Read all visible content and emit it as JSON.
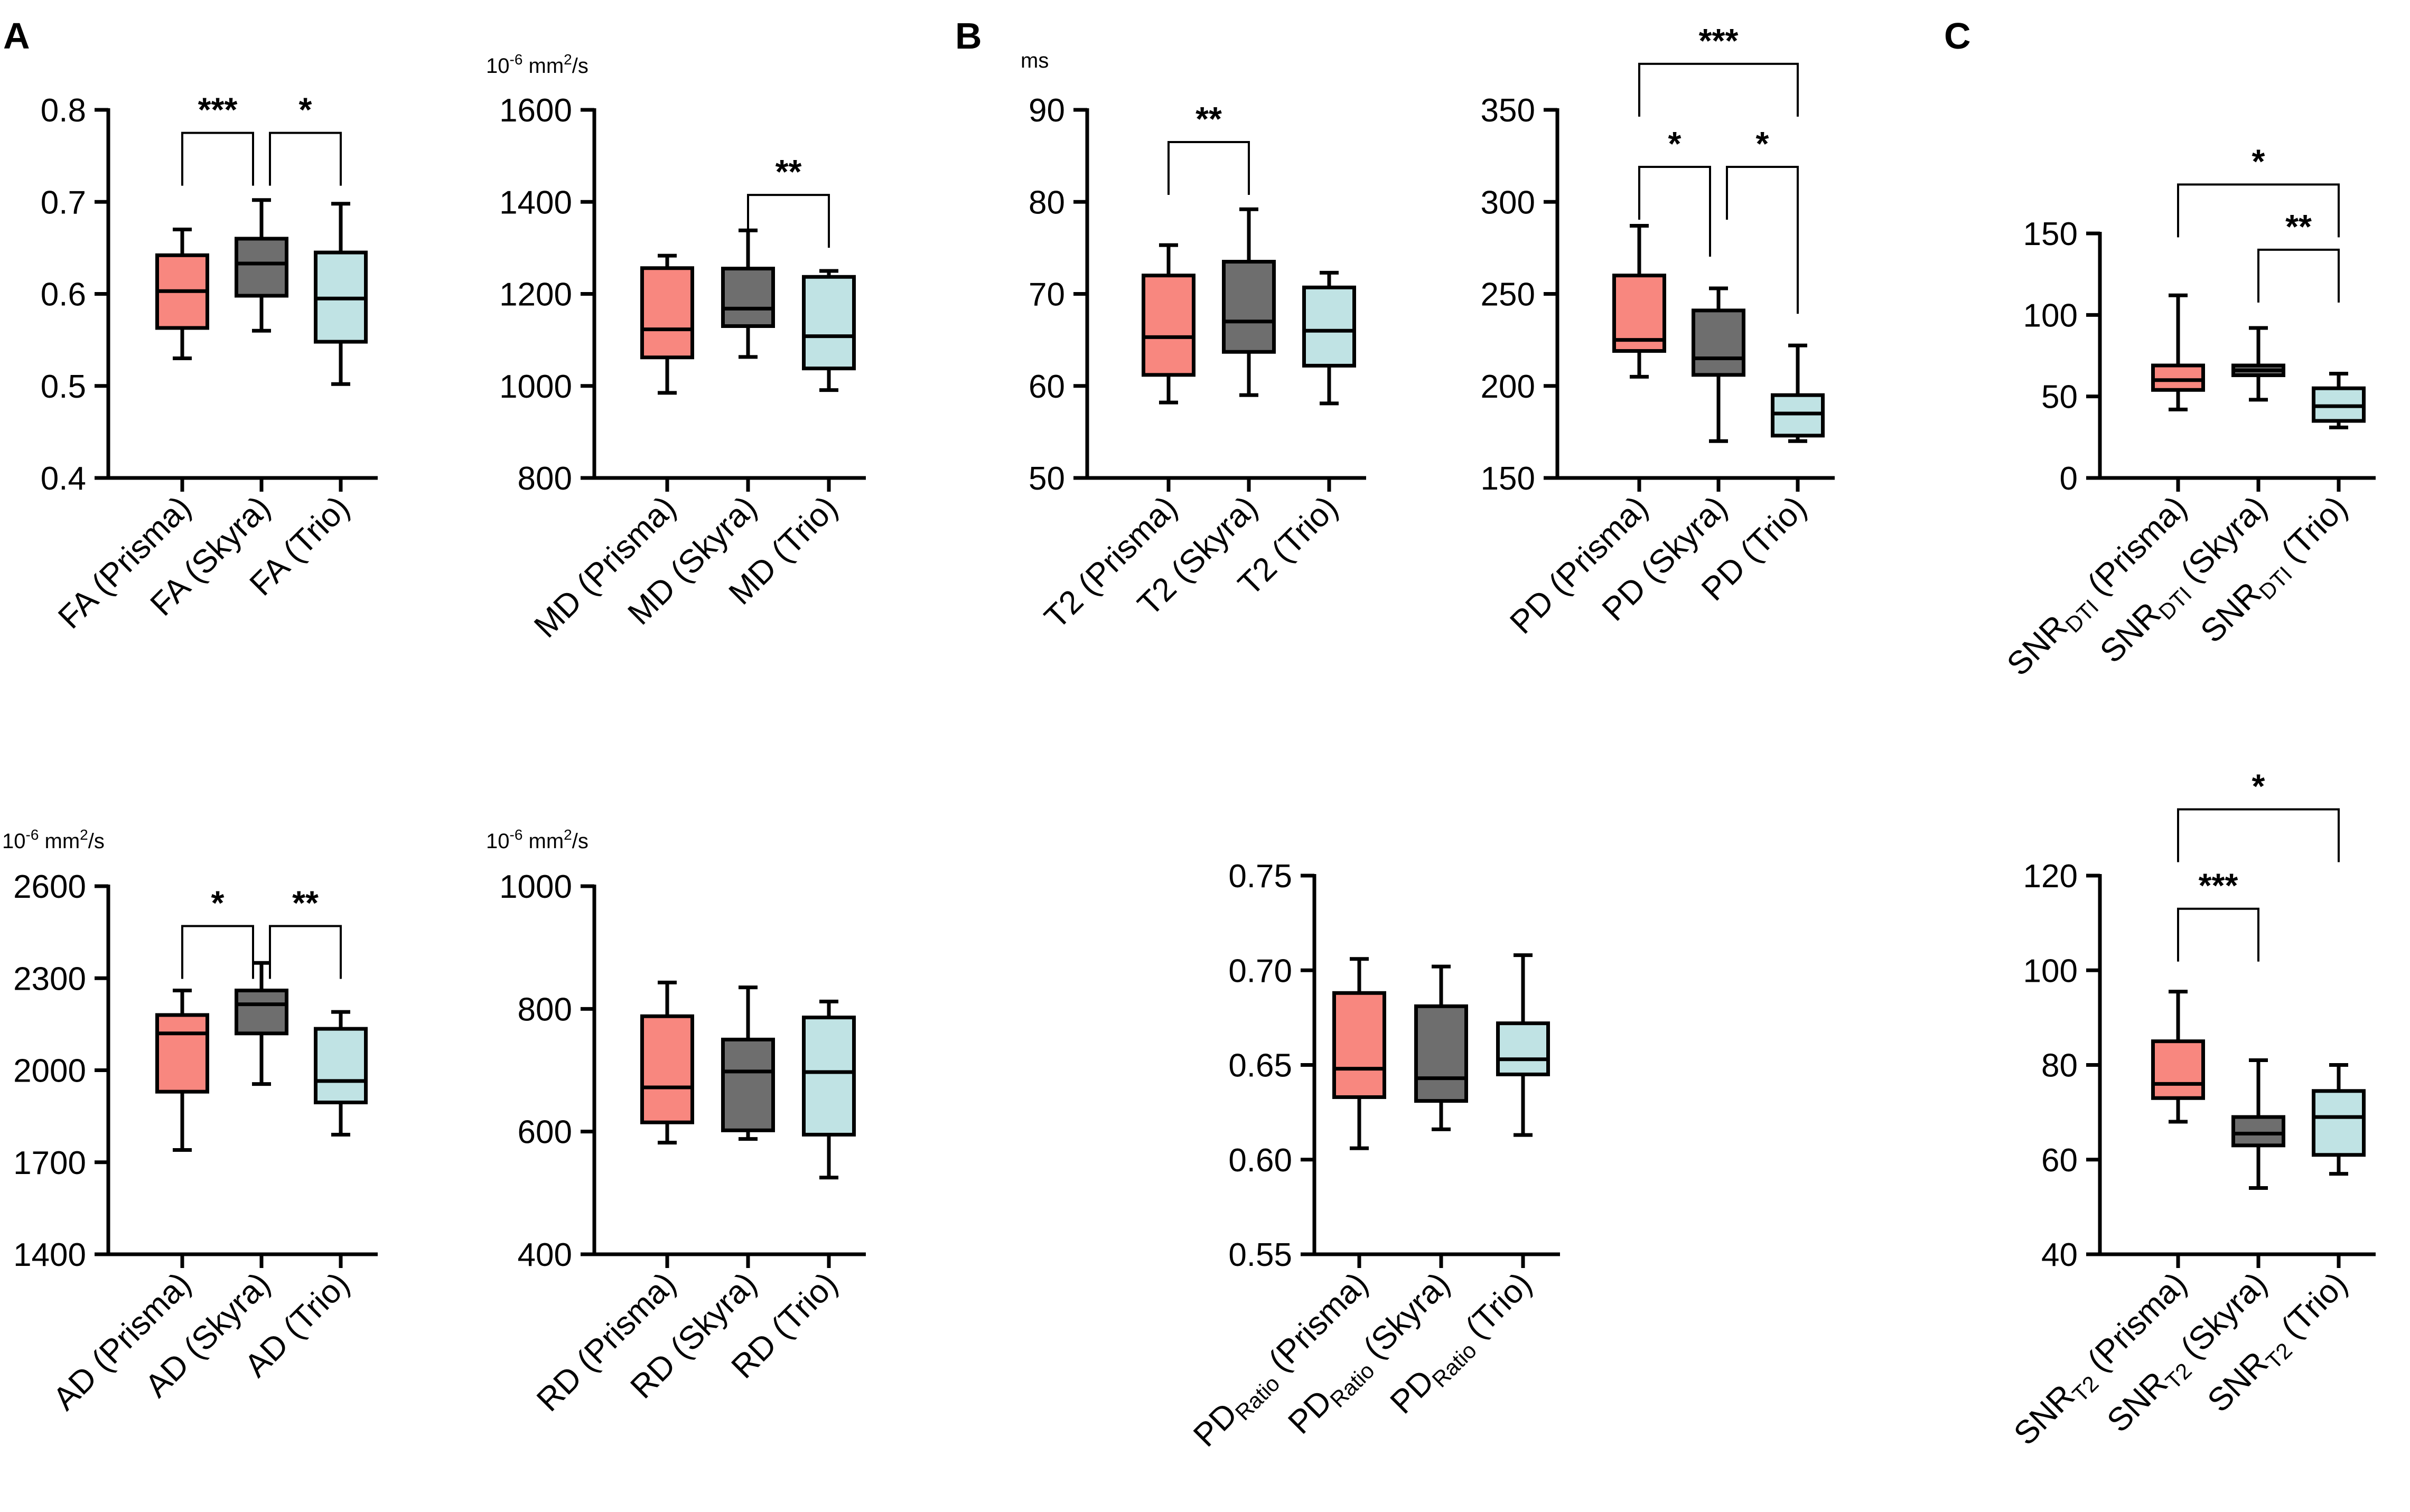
{
  "panel_labels": [
    "A",
    "B",
    "C"
  ],
  "colors": {
    "prisma": "#F8877F",
    "skyra": "#6E6E6E",
    "trio": "#C0E3E4",
    "stroke": "#000000"
  },
  "chart_data": [
    {
      "id": "fa",
      "type": "box",
      "panel": "A",
      "unit": "",
      "ylim": [
        0.4,
        0.8
      ],
      "yticks": [
        0.4,
        0.5,
        0.6,
        0.7,
        0.8
      ],
      "ytick_labels": [
        "0.4",
        "0.5",
        "0.6",
        "0.7",
        "0.8"
      ],
      "categories": [
        {
          "base": "FA",
          "sub": "",
          "suffix": " (Prisma)"
        },
        {
          "base": "FA",
          "sub": "",
          "suffix": " (Skyra)"
        },
        {
          "base": "FA",
          "sub": "",
          "suffix": " (Trio)"
        }
      ],
      "boxes": [
        {
          "min": 0.53,
          "q1": 0.563,
          "median": 0.603,
          "q3": 0.642,
          "max": 0.67
        },
        {
          "min": 0.56,
          "q1": 0.598,
          "median": 0.633,
          "q3": 0.66,
          "max": 0.702
        },
        {
          "min": 0.502,
          "q1": 0.548,
          "median": 0.595,
          "q3": 0.645,
          "max": 0.698
        }
      ],
      "significance": [
        {
          "from": 0,
          "to": 1,
          "label": "***",
          "bar_y": 0.775
        },
        {
          "from": 1,
          "to": 2,
          "label": "*",
          "bar_y": 0.775
        }
      ]
    },
    {
      "id": "md",
      "type": "box",
      "panel": "A",
      "unit": "10-6 mm2/s",
      "ylim": [
        800,
        1600
      ],
      "yticks": [
        800,
        1000,
        1200,
        1400,
        1600
      ],
      "ytick_labels": [
        "800",
        "1000",
        "1200",
        "1400",
        "1600"
      ],
      "categories": [
        {
          "base": "MD",
          "sub": "",
          "suffix": " (Prisma)"
        },
        {
          "base": "MD",
          "sub": "",
          "suffix": " (Skyra)"
        },
        {
          "base": "MD",
          "sub": "",
          "suffix": " (Trio)"
        }
      ],
      "boxes": [
        {
          "min": 985,
          "q1": 1062,
          "median": 1123,
          "q3": 1256,
          "max": 1283
        },
        {
          "min": 1063,
          "q1": 1130,
          "median": 1168,
          "q3": 1255,
          "max": 1338
        },
        {
          "min": 991,
          "q1": 1038,
          "median": 1108,
          "q3": 1237,
          "max": 1250
        }
      ],
      "significance": [
        {
          "from": 1,
          "to": 2,
          "label": "**",
          "bar_y": 1415
        }
      ]
    },
    {
      "id": "t2",
      "type": "box",
      "panel": "B",
      "unit": "ms",
      "ylim": [
        50,
        90
      ],
      "yticks": [
        50,
        60,
        70,
        80,
        90
      ],
      "ytick_labels": [
        "50",
        "60",
        "70",
        "80",
        "90"
      ],
      "categories": [
        {
          "base": "T2",
          "sub": "",
          "suffix": " (Prisma)"
        },
        {
          "base": "T2",
          "sub": "",
          "suffix": " (Skyra)"
        },
        {
          "base": "T2",
          "sub": "",
          "suffix": " (Trio)"
        }
      ],
      "boxes": [
        {
          "min": 58.2,
          "q1": 61.2,
          "median": 65.3,
          "q3": 72.0,
          "max": 75.3
        },
        {
          "min": 59.0,
          "q1": 63.7,
          "median": 67.0,
          "q3": 73.5,
          "max": 79.2
        },
        {
          "min": 58.1,
          "q1": 62.2,
          "median": 66.0,
          "q3": 70.7,
          "max": 72.3
        }
      ],
      "significance": [
        {
          "from": 0,
          "to": 1,
          "label": "**",
          "bar_y": 86.5
        }
      ]
    },
    {
      "id": "pd",
      "type": "box",
      "panel": "B",
      "unit": "",
      "ylim": [
        150,
        350
      ],
      "yticks": [
        150,
        200,
        250,
        300,
        350
      ],
      "ytick_labels": [
        "150",
        "200",
        "250",
        "300",
        "350"
      ],
      "categories": [
        {
          "base": "PD",
          "sub": "",
          "suffix": " (Prisma)"
        },
        {
          "base": "PD",
          "sub": "",
          "suffix": " (Skyra)"
        },
        {
          "base": "PD",
          "sub": "",
          "suffix": " (Trio)"
        }
      ],
      "boxes": [
        {
          "min": 205,
          "q1": 219,
          "median": 225,
          "q3": 260,
          "max": 287
        },
        {
          "min": 170,
          "q1": 206,
          "median": 215,
          "q3": 241,
          "max": 253
        },
        {
          "min": 170,
          "q1": 173,
          "median": 185,
          "q3": 195,
          "max": 222
        }
      ],
      "significance": [
        {
          "from": 0,
          "to": 1,
          "label": "*",
          "bar_y": 319,
          "drop_to": 0
        },
        {
          "from": 1,
          "to": 2,
          "label": "*",
          "bar_y": 319,
          "drop_to": 0
        },
        {
          "from": 0,
          "to": 2,
          "label": "***",
          "bar_y": 375
        }
      ]
    },
    {
      "id": "snr_dti",
      "type": "box",
      "panel": "C",
      "unit": "",
      "ylim": [
        0,
        150
      ],
      "yticks": [
        0,
        50,
        100,
        150
      ],
      "ytick_labels": [
        "0",
        "50",
        "100",
        "150"
      ],
      "categories": [
        {
          "base": "SNR",
          "sub": "DTI",
          "suffix": " (Prisma)"
        },
        {
          "base": "SNR",
          "sub": "DTI",
          "suffix": " (Skyra)"
        },
        {
          "base": "SNR",
          "sub": "DTI",
          "suffix": " (Trio)"
        }
      ],
      "boxes": [
        {
          "min": 42,
          "q1": 54,
          "median": 60,
          "q3": 69,
          "max": 112
        },
        {
          "min": 48,
          "q1": 63,
          "median": 66,
          "q3": 69,
          "max": 92
        },
        {
          "min": 31,
          "q1": 35,
          "median": 44,
          "q3": 55,
          "max": 64
        }
      ],
      "significance": [
        {
          "from": 1,
          "to": 2,
          "label": "**",
          "bar_y": 140
        },
        {
          "from": 0,
          "to": 2,
          "label": "*",
          "bar_y": 180
        }
      ]
    },
    {
      "id": "ad",
      "type": "box",
      "panel": "A",
      "unit": "10-6 mm2/s",
      "ylim": [
        1400,
        2600
      ],
      "yticks": [
        1400,
        1700,
        2000,
        2300,
        2600
      ],
      "ytick_labels": [
        "1400",
        "1700",
        "2000",
        "2300",
        "2600"
      ],
      "categories": [
        {
          "base": "AD",
          "sub": "",
          "suffix": " (Prisma)"
        },
        {
          "base": "AD",
          "sub": "",
          "suffix": " (Skyra)"
        },
        {
          "base": "AD",
          "sub": "",
          "suffix": " (Trio)"
        }
      ],
      "boxes": [
        {
          "min": 1740,
          "q1": 1930,
          "median": 2120,
          "q3": 2180,
          "max": 2260
        },
        {
          "min": 1955,
          "q1": 2120,
          "median": 2215,
          "q3": 2260,
          "max": 2350
        },
        {
          "min": 1790,
          "q1": 1895,
          "median": 1965,
          "q3": 2135,
          "max": 2190
        }
      ],
      "significance": [
        {
          "from": 0,
          "to": 1,
          "label": "*",
          "bar_y": 2470
        },
        {
          "from": 1,
          "to": 2,
          "label": "**",
          "bar_y": 2470
        }
      ]
    },
    {
      "id": "rd",
      "type": "box",
      "panel": "A",
      "unit": "10-6 mm2/s",
      "ylim": [
        400,
        1000
      ],
      "yticks": [
        400,
        600,
        800,
        1000
      ],
      "ytick_labels": [
        "400",
        "600",
        "800",
        "1000"
      ],
      "categories": [
        {
          "base": "RD",
          "sub": "",
          "suffix": " (Prisma)"
        },
        {
          "base": "RD",
          "sub": "",
          "suffix": " (Skyra)"
        },
        {
          "base": "RD",
          "sub": "",
          "suffix": " (Trio)"
        }
      ],
      "boxes": [
        {
          "min": 582,
          "q1": 615,
          "median": 672,
          "q3": 788,
          "max": 843
        },
        {
          "min": 588,
          "q1": 602,
          "median": 698,
          "q3": 750,
          "max": 835
        },
        {
          "min": 525,
          "q1": 595,
          "median": 697,
          "q3": 786,
          "max": 812
        }
      ],
      "significance": []
    },
    {
      "id": "pd_ratio",
      "type": "box",
      "panel": "B",
      "unit": "",
      "ylim": [
        0.55,
        0.75
      ],
      "yticks": [
        0.55,
        0.6,
        0.65,
        0.7,
        0.75
      ],
      "ytick_labels": [
        "0.55",
        "0.60",
        "0.65",
        "0.70",
        "0.75"
      ],
      "categories": [
        {
          "base": "PD",
          "sub": "Ratio",
          "suffix": " (Prisma)"
        },
        {
          "base": "PD",
          "sub": "Ratio",
          "suffix": " (Skyra)"
        },
        {
          "base": "PD",
          "sub": "Ratio",
          "suffix": " (Trio)"
        }
      ],
      "boxes": [
        {
          "min": 0.606,
          "q1": 0.633,
          "median": 0.648,
          "q3": 0.688,
          "max": 0.706
        },
        {
          "min": 0.616,
          "q1": 0.631,
          "median": 0.643,
          "q3": 0.681,
          "max": 0.702
        },
        {
          "min": 0.613,
          "q1": 0.645,
          "median": 0.653,
          "q3": 0.672,
          "max": 0.708
        }
      ],
      "significance": []
    },
    {
      "id": "snr_t2",
      "type": "box",
      "panel": "C",
      "unit": "",
      "ylim": [
        40,
        120
      ],
      "yticks": [
        40,
        60,
        80,
        100,
        120
      ],
      "ytick_labels": [
        "40",
        "60",
        "80",
        "100",
        "120"
      ],
      "categories": [
        {
          "base": "SNR",
          "sub": "T2",
          "suffix": " (Prisma)"
        },
        {
          "base": "SNR",
          "sub": "T2",
          "suffix": " (Skyra)"
        },
        {
          "base": "SNR",
          "sub": "T2",
          "suffix": " (Trio)"
        }
      ],
      "boxes": [
        {
          "min": 68,
          "q1": 73,
          "median": 76,
          "q3": 85,
          "max": 95.5
        },
        {
          "min": 54,
          "q1": 63,
          "median": 65.5,
          "q3": 69,
          "max": 81
        },
        {
          "min": 57,
          "q1": 61,
          "median": 69,
          "q3": 74.5,
          "max": 80
        }
      ],
      "significance": [
        {
          "from": 0,
          "to": 1,
          "label": "***",
          "bar_y": 113
        },
        {
          "from": 0,
          "to": 2,
          "label": "*",
          "bar_y": 134
        }
      ]
    }
  ]
}
